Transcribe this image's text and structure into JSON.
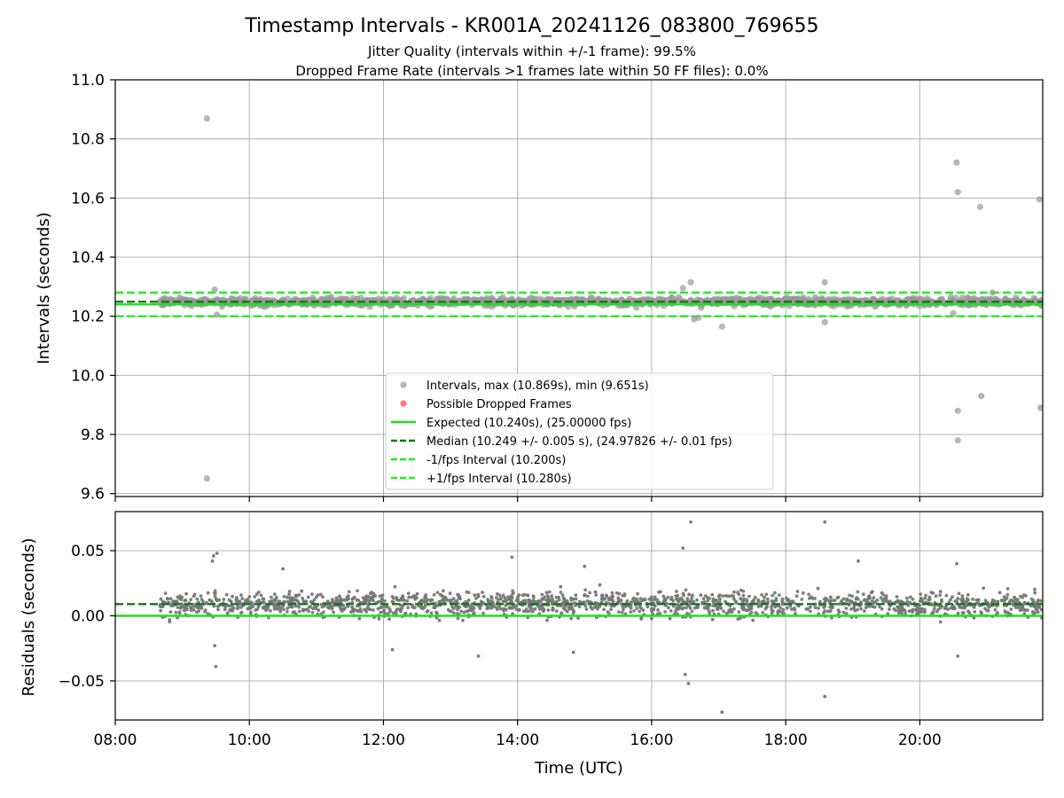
{
  "chart_data": [
    {
      "type": "scatter",
      "title": "Timestamp Intervals - KR001A_20241126_083800_769655",
      "subtitle_1": "Jitter Quality (intervals within +/-1 frame): 99.5%",
      "subtitle_2": "Dropped Frame Rate (intervals >1 frames late within 50 FF files): 0.0%",
      "ylabel": "Intervals (seconds)",
      "xlim": [
        "08:00",
        "21:50"
      ],
      "ylim": [
        9.59,
        11.0
      ],
      "yticks": [
        "9.6",
        "9.8",
        "10.0",
        "10.2",
        "10.4",
        "10.6",
        "10.8",
        "11.0"
      ],
      "grid": true,
      "legend_position": "lower-center",
      "series": [
        {
          "name": "Intervals, max (10.869s), min (9.651s)",
          "color": "#999999",
          "outliers_x": [
            "09:22",
            "09:22",
            "09:29",
            "16:28",
            "16:35",
            "16:38",
            "17:03",
            "18:35",
            "18:35",
            "20:33",
            "20:34",
            "20:34",
            "20:34",
            "20:54",
            "20:55",
            "21:47",
            "21:48",
            "09:31",
            "16:42",
            "20:30",
            "21:05"
          ],
          "outliers_y": [
            10.869,
            9.651,
            10.29,
            10.295,
            10.315,
            10.19,
            10.165,
            10.315,
            10.18,
            10.72,
            10.62,
            9.88,
            9.78,
            10.57,
            9.93,
            10.595,
            9.89,
            10.205,
            10.195,
            10.21,
            10.28
          ],
          "bulk_range": [
            "08:40",
            "21:50"
          ],
          "bulk_center": 10.249,
          "bulk_spread": 0.012
        },
        {
          "name": "Possible Dropped Frames",
          "color": "#ff6666",
          "x": [],
          "y": []
        },
        {
          "name": "Expected (10.240s), (25.00000 fps)",
          "color": "#22dd22",
          "style": "solid",
          "value": 10.24
        },
        {
          "name": "Median (10.249 +/- 0.005 s), (24.97826 +/- 0.01 fps)",
          "color": "#117711",
          "style": "dashed",
          "value": 10.249
        },
        {
          "name": "-1/fps Interval (10.200s)",
          "color": "#22ee22",
          "style": "dashed",
          "value": 10.2
        },
        {
          "name": "+1/fps Interval (10.280s)",
          "color": "#22ee22",
          "style": "dashed",
          "value": 10.28
        }
      ]
    },
    {
      "type": "scatter",
      "ylabel": "Residuals (seconds)",
      "xlabel": "Time (UTC)",
      "xlim": [
        "08:00",
        "21:50"
      ],
      "ylim": [
        -0.08,
        0.08
      ],
      "yticks": [
        "−0.05",
        "0.00",
        "0.05"
      ],
      "xticks": [
        "08:00",
        "10:00",
        "12:00",
        "14:00",
        "16:00",
        "18:00",
        "20:00"
      ],
      "grid": true,
      "series": [
        {
          "name": "",
          "color": "#777777",
          "outliers_x": [
            "09:27",
            "09:28",
            "09:31",
            "09:29",
            "09:30",
            "16:28",
            "16:35",
            "16:30",
            "16:33",
            "17:03",
            "18:35",
            "18:35",
            "20:33",
            "20:34",
            "13:55",
            "15:00",
            "19:05",
            "10:30",
            "12:08",
            "13:25",
            "14:50"
          ],
          "outliers_y": [
            0.042,
            0.046,
            0.048,
            -0.023,
            -0.039,
            0.052,
            0.072,
            -0.045,
            -0.052,
            -0.074,
            0.072,
            -0.062,
            0.04,
            -0.031,
            0.045,
            0.038,
            0.042,
            0.036,
            -0.026,
            -0.031,
            -0.028
          ],
          "bulk_range": [
            "08:40",
            "21:50"
          ],
          "bulk_center": 0.009,
          "bulk_spread": 0.012
        },
        {
          "name": "",
          "color": "#22dd22",
          "style": "solid",
          "value": 0.0
        },
        {
          "name": "",
          "color": "#117711",
          "style": "dashed",
          "value": 0.009
        }
      ]
    }
  ]
}
